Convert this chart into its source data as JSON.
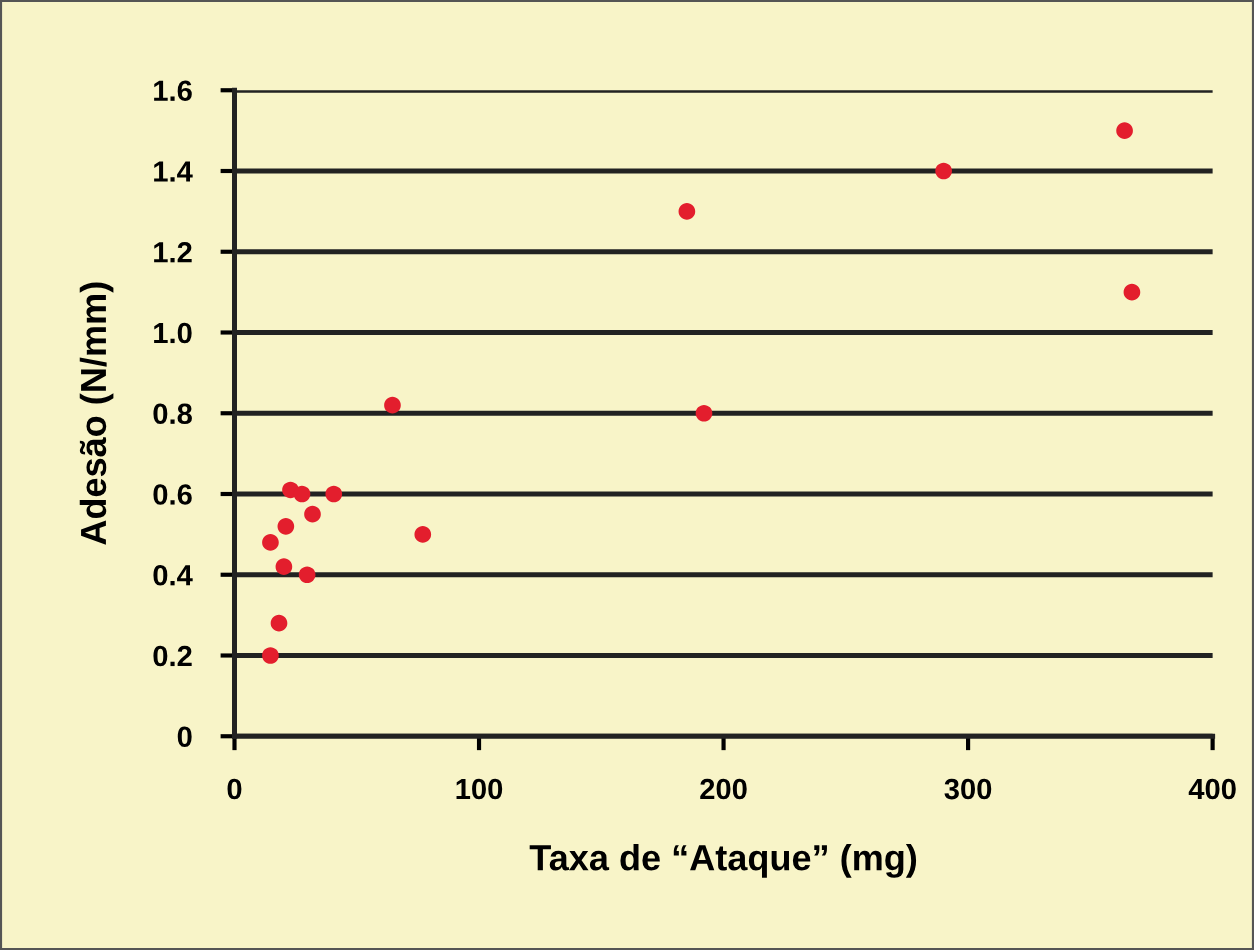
{
  "chart_data": {
    "type": "scatter",
    "xlabel": "Taxa de “Ataque” (mg)",
    "ylabel": "Adesão (N/mm)",
    "series": [
      {
        "color": "#e31e2d",
        "x": [
          14.7,
          18.2,
          20.2,
          29.7,
          14.7,
          21,
          31.9,
          22.9,
          27.6,
          40.6,
          64.6,
          77,
          185,
          192,
          290,
          364,
          367
        ],
        "values": [
          0.2,
          0.28,
          0.42,
          0.4,
          0.48,
          0.52,
          0.55,
          0.61,
          0.6,
          0.6,
          0.82,
          0.5,
          1.3,
          0.8,
          1.4,
          1.5,
          1.1
        ]
      }
    ],
    "xlim": [
      0,
      400
    ],
    "xticks": [
      0,
      100,
      200,
      300,
      400
    ],
    "ylim": [
      0,
      1.6
    ],
    "yticks": [
      0,
      {
        "value": 0.2,
        "label": "0.2"
      },
      {
        "value": 0.4,
        "label": "0.4"
      },
      {
        "value": 0.6,
        "label": "0.6"
      },
      {
        "value": 0.8,
        "label": "0.8"
      },
      {
        "value": 1.0,
        "label": "1.0"
      },
      {
        "value": 1.2,
        "label": "1.2"
      },
      {
        "value": 1.4,
        "label": "1.4"
      },
      {
        "value": 1.6,
        "label": "1.6"
      }
    ],
    "grid": "y",
    "marker": "circle",
    "legend": false
  }
}
